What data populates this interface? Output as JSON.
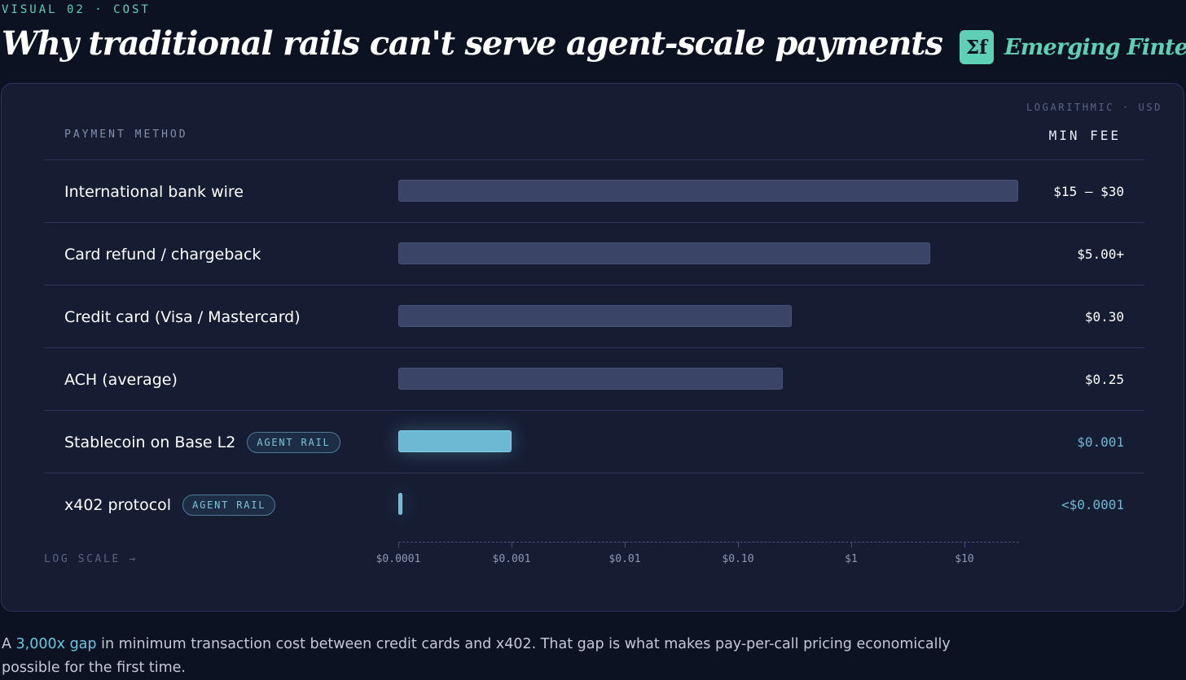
{
  "header": {
    "eyebrow": "VISUAL 02 · COST",
    "title": "Why traditional rails can't serve agent-scale payments",
    "brand_name": "Emerging Fintech",
    "brand_logo_text": "Σf"
  },
  "table": {
    "scale_note": "LOGARITHMIC · USD",
    "col_method": "PAYMENT METHOD",
    "col_fee": "MIN FEE",
    "log_scale_label": "LOG SCALE →"
  },
  "colors": {
    "accent": "#5fd0b6",
    "agent": "#6cb9d4",
    "bar": "#3a4466",
    "background": "#0c1222",
    "panel": "#161d33"
  },
  "chart_data": {
    "type": "bar",
    "orientation": "horizontal",
    "scale": "log",
    "unit": "USD",
    "xlim": [
      0.0001,
      30
    ],
    "categories": [
      "International bank wire",
      "Card refund / chargeback",
      "Credit card (Visa / Mastercard)",
      "ACH (average)",
      "Stablecoin on Base L2",
      "x402 protocol"
    ],
    "values": [
      30,
      5,
      0.3,
      0.25,
      0.001,
      0.0001
    ],
    "fee_labels": [
      "$15 – $30",
      "$5.00+",
      "$0.30",
      "$0.25",
      "$0.001",
      "<$0.0001"
    ],
    "agent_rail": [
      false,
      false,
      false,
      false,
      true,
      true
    ],
    "badge_label": "AGENT RAIL",
    "ticks": [
      0.0001,
      0.001,
      0.01,
      0.1,
      1,
      10
    ],
    "tick_labels": [
      "$0.0001",
      "$0.001",
      "$0.01",
      "$0.10",
      "$1",
      "$10"
    ]
  },
  "caption": {
    "prefix": "A ",
    "highlight": "3,000x gap",
    "rest": " in minimum transaction cost between credit cards and x402. That gap is what makes pay-per-call pricing economically possible for the first time."
  }
}
